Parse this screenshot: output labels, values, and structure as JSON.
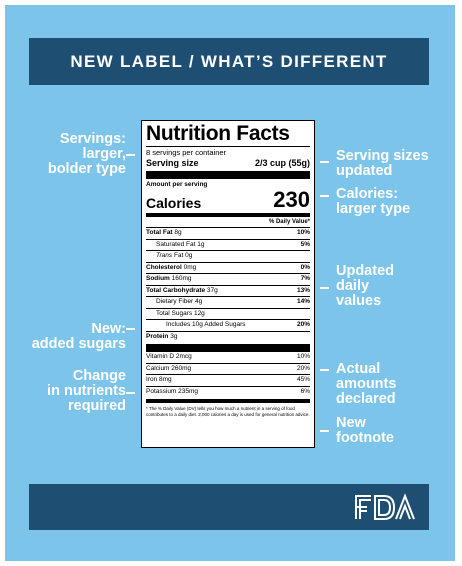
{
  "header": {
    "title": "NEW LABEL / WHAT’S DIFFERENT"
  },
  "colors": {
    "background": "#7dc4ea",
    "bar": "#1f4e73",
    "annotation_text": "#ffffff"
  },
  "annotations_left": [
    {
      "lines": [
        "Servings:",
        "larger,",
        "bolder type"
      ]
    },
    {
      "lines": [
        "New:",
        "added sugars"
      ]
    },
    {
      "lines": [
        "Change",
        "in nutrients",
        "required"
      ]
    }
  ],
  "annotations_right": [
    {
      "lines": [
        "Serving sizes",
        "updated"
      ]
    },
    {
      "lines": [
        "Calories:",
        "larger type"
      ]
    },
    {
      "lines": [
        "Updated",
        "daily",
        "values"
      ]
    },
    {
      "lines": [
        "Actual",
        "amounts",
        "declared"
      ]
    },
    {
      "lines": [
        "New",
        "footnote"
      ]
    }
  ],
  "label": {
    "title": "Nutrition Facts",
    "servings_per_container": "8 servings per container",
    "serving_size_label": "Serving size",
    "serving_size_value": "2/3 cup (55g)",
    "amount_per_serving": "Amount per serving",
    "calories_label": "Calories",
    "calories_value": "230",
    "dv_header": "% Daily Value*",
    "rows": [
      {
        "name": "Total Fat",
        "amount": "8g",
        "pct": "10%"
      },
      {
        "name": "Saturated Fat",
        "amount": "1g",
        "pct": "5%"
      },
      {
        "name": "Trans",
        "amount": "Fat 0g",
        "pct": ""
      },
      {
        "name": "Cholesterol",
        "amount": "0mg",
        "pct": "0%"
      },
      {
        "name": "Sodium",
        "amount": "160mg",
        "pct": "7%"
      },
      {
        "name": "Total Carbohydrate",
        "amount": "37g",
        "pct": "13%"
      },
      {
        "name": "Dietary Fiber",
        "amount": "4g",
        "pct": "14%"
      },
      {
        "name": "Total Sugars",
        "amount": "12g",
        "pct": ""
      },
      {
        "name": "Includes 10g Added Sugars",
        "amount": "",
        "pct": "20%"
      },
      {
        "name": "Protein",
        "amount": "3g",
        "pct": ""
      }
    ],
    "vitamins": [
      {
        "text": "Vitamin D 2mcg",
        "pct": "10%"
      },
      {
        "text": "Calcium 260mg",
        "pct": "20%"
      },
      {
        "text": "Iron 8mg",
        "pct": "45%"
      },
      {
        "text": "Potassium 235mg",
        "pct": "6%"
      }
    ],
    "footnote": "* The % Daily Value (DV) tells you how much a nutrient in a serving of food contributes to a daily diet. 2,000 calories a day is used for general nutrition advice."
  },
  "logo": {
    "text": "FDA"
  }
}
